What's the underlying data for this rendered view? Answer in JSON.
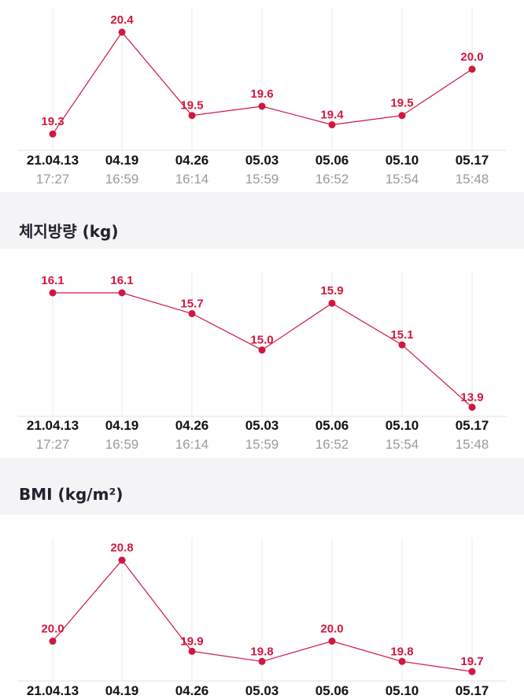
{
  "theme": {
    "accent": "#d0173f",
    "gridline": "#ebebeb",
    "baseline": "#e0e0e0",
    "section_bg": "#f4f4f6"
  },
  "x_dates": [
    "21.04.13",
    "04.19",
    "04.26",
    "05.03",
    "05.06",
    "05.10",
    "05.17"
  ],
  "x_times": [
    "17:27",
    "16:59",
    "16:14",
    "15:59",
    "16:52",
    "15:54",
    "15:48"
  ],
  "sections": {
    "body_fat_mass": {
      "title": "체지방량 (kg)"
    },
    "bmi": {
      "title": "BMI (kg/m²)"
    }
  },
  "chart_data": [
    {
      "type": "line",
      "categories": [
        "21.04.13",
        "04.19",
        "04.26",
        "05.03",
        "05.06",
        "05.10",
        "05.17"
      ],
      "times": [
        "17:27",
        "16:59",
        "16:14",
        "15:59",
        "16:52",
        "15:54",
        "15:48"
      ],
      "values": [
        19.3,
        20.4,
        19.5,
        19.6,
        19.4,
        19.5,
        20.0
      ],
      "value_labels": [
        "19.3",
        "20.4",
        "19.5",
        "19.6",
        "19.4",
        "19.5",
        "20.0"
      ],
      "ylim": [
        19.2,
        20.45
      ],
      "grid": "vertical"
    },
    {
      "type": "line",
      "title": "체지방량 (kg)",
      "categories": [
        "21.04.13",
        "04.19",
        "04.26",
        "05.03",
        "05.06",
        "05.10",
        "05.17"
      ],
      "times": [
        "17:27",
        "16:59",
        "16:14",
        "15:59",
        "16:52",
        "15:54",
        "15:48"
      ],
      "values": [
        16.1,
        16.1,
        15.7,
        15.0,
        15.9,
        15.1,
        13.9
      ],
      "value_labels": [
        "16.1",
        "16.1",
        "15.7",
        "15.0",
        "15.9",
        "15.1",
        "13.9"
      ],
      "ylim": [
        13.86,
        16.1
      ],
      "grid": "vertical"
    },
    {
      "type": "line",
      "title": "BMI (kg/m²)",
      "categories": [
        "21.04.13",
        "04.19",
        "04.26",
        "05.03",
        "05.06",
        "05.10",
        "05.17"
      ],
      "values": [
        20.0,
        20.8,
        19.9,
        19.8,
        20.0,
        19.8,
        19.7
      ],
      "value_labels": [
        "20.0",
        "20.8",
        "19.9",
        "19.8",
        "20.0",
        "19.8",
        "19.7"
      ],
      "ylim": [
        19.67,
        20.82
      ],
      "grid": "vertical"
    }
  ]
}
